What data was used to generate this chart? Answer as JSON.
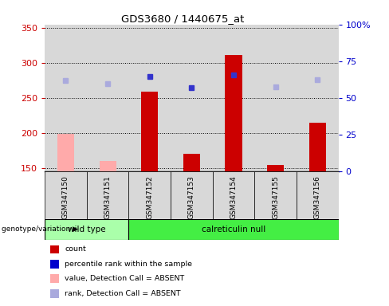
{
  "title": "GDS3680 / 1440675_at",
  "samples": [
    "GSM347150",
    "GSM347151",
    "GSM347152",
    "GSM347153",
    "GSM347154",
    "GSM347155",
    "GSM347156"
  ],
  "count_values": [
    199,
    160,
    259,
    170,
    311,
    154,
    215
  ],
  "percentile_rank": [
    275,
    270,
    281,
    265,
    283,
    266,
    276
  ],
  "count_colors": [
    "#ffaaaa",
    "#ffaaaa",
    "#cc0000",
    "#cc0000",
    "#cc0000",
    "#cc0000",
    "#cc0000"
  ],
  "rank_colors": [
    "#aaaadd",
    "#aaaadd",
    "#3333cc",
    "#3333cc",
    "#3333cc",
    "#aaaadd",
    "#aaaadd"
  ],
  "ylim_left": [
    145,
    355
  ],
  "ylim_right": [
    0,
    100
  ],
  "yticks_left": [
    150,
    200,
    250,
    300,
    350
  ],
  "yticks_right": [
    0,
    25,
    50,
    75,
    100
  ],
  "ytick_right_labels": [
    "0",
    "25",
    "50",
    "75",
    "100%"
  ],
  "wt_color": "#aaffaa",
  "cn_color": "#44ee44",
  "left_axis_color": "#cc0000",
  "right_axis_color": "#0000cc",
  "col_bg_color": "#d8d8d8",
  "legend": [
    {
      "label": "count",
      "color": "#cc0000"
    },
    {
      "label": "percentile rank within the sample",
      "color": "#0000cc"
    },
    {
      "label": "value, Detection Call = ABSENT",
      "color": "#ffaaaa"
    },
    {
      "label": "rank, Detection Call = ABSENT",
      "color": "#aaaadd"
    }
  ],
  "bar_width": 0.4
}
